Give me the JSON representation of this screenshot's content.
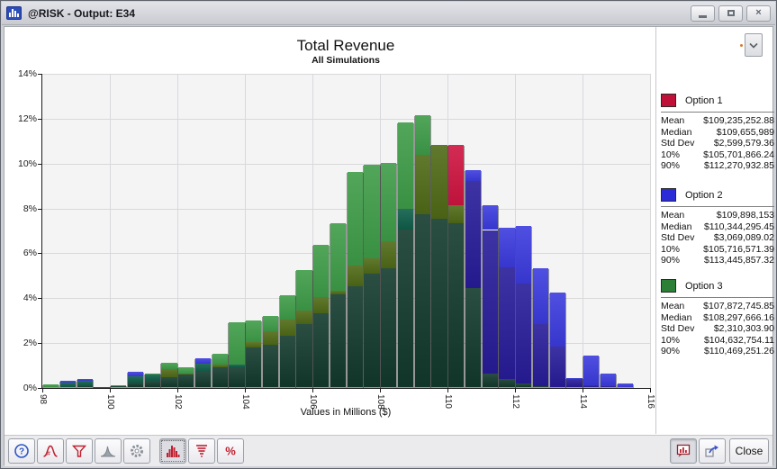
{
  "window": {
    "title": "@RISK - Output: E34",
    "controls": {
      "close_glyph": "×"
    }
  },
  "chart": {
    "title": "Total Revenue",
    "subtitle": "All Simulations",
    "xlabel": "Values in Millions ($)",
    "y_ticks": [
      "0%",
      "2%",
      "4%",
      "6%",
      "8%",
      "10%",
      "12%",
      "14%"
    ],
    "x_ticks": [
      "98",
      "100",
      "102",
      "104",
      "106",
      "108",
      "110",
      "112",
      "114",
      "116"
    ]
  },
  "chart_data": {
    "type": "bar",
    "subtype": "overlaid-histogram",
    "xlim": [
      98,
      116
    ],
    "ylim_pct": [
      0,
      14
    ],
    "bin_start": 98,
    "bin_width": 0.5,
    "grid": true,
    "series": [
      {
        "name": "Option 1",
        "key": "r",
        "color": "#CE1440",
        "values": [
          0,
          0,
          0.05,
          0,
          0.05,
          0.2,
          0.3,
          0.8,
          0.6,
          0.7,
          1.0,
          0.9,
          2.0,
          2.5,
          3.0,
          3.4,
          4.0,
          4.3,
          5.4,
          5.75,
          6.5,
          7.0,
          10.35,
          10.8,
          10.8,
          9.2,
          7.0,
          5.35,
          4.6,
          2.8,
          1.8,
          0.35,
          0.1,
          0.05,
          0,
          0
        ]
      },
      {
        "name": "Option 2",
        "key": "b",
        "color": "#3B3BDE",
        "values": [
          0,
          0.3,
          0.36,
          0.05,
          0.08,
          0.7,
          0.55,
          0.45,
          0.55,
          1.29,
          0.9,
          1.0,
          1.76,
          1.9,
          2.3,
          2.8,
          3.3,
          4.15,
          4.5,
          5.05,
          5.3,
          7.95,
          7.7,
          7.5,
          7.3,
          9.65,
          8.1,
          7.1,
          7.2,
          5.3,
          4.2,
          0.4,
          1.4,
          0.6,
          0.15,
          0
        ]
      },
      {
        "name": "Option 3",
        "key": "g",
        "color": "#3E9C48",
        "values": [
          0.12,
          0.2,
          0.28,
          0.05,
          0.1,
          0.5,
          0.6,
          1.1,
          0.88,
          1.05,
          1.5,
          2.87,
          2.96,
          3.16,
          4.1,
          5.2,
          6.35,
          7.3,
          9.6,
          9.9,
          10.0,
          11.8,
          12.1,
          10.8,
          8.1,
          4.4,
          0.6,
          0.35,
          0.15,
          0.05,
          0,
          0,
          0,
          0,
          0,
          0
        ]
      }
    ],
    "overlap_colors": {
      "g": "#3E9C48",
      "r": "#CE1440",
      "b": "#3B3BDE",
      "gr": "#4F6A16",
      "gb": "#0E5E49",
      "rb": "#271C99",
      "grb": "#123A2C"
    }
  },
  "legend": {
    "groups": [
      {
        "name": "Option 1",
        "color": "#C01038",
        "stats": [
          {
            "label": "Mean",
            "value": "$109,235,252.88"
          },
          {
            "label": "Median",
            "value": "$109,655,989"
          },
          {
            "label": "Std Dev",
            "value": "$2,599,579.36"
          },
          {
            "label": "10%",
            "value": "$105,701,866.24"
          },
          {
            "label": "90%",
            "value": "$112,270,932.85"
          }
        ]
      },
      {
        "name": "Option 2",
        "color": "#2B2BD8",
        "stats": [
          {
            "label": "Mean",
            "value": "$109,898,153"
          },
          {
            "label": "Median",
            "value": "$110,344,295.45"
          },
          {
            "label": "Std Dev",
            "value": "$3,069,089.02"
          },
          {
            "label": "10%",
            "value": "$105,716,571.39"
          },
          {
            "label": "90%",
            "value": "$113,445,857.32"
          }
        ]
      },
      {
        "name": "Option 3",
        "color": "#2B7F37",
        "stats": [
          {
            "label": "Mean",
            "value": "$107,872,745.85"
          },
          {
            "label": "Median",
            "value": "$108,297,666.16"
          },
          {
            "label": "Std Dev",
            "value": "$2,310,303.90"
          },
          {
            "label": "10%",
            "value": "$104,632,754.11"
          },
          {
            "label": "90%",
            "value": "$110,469,251.26"
          }
        ]
      }
    ]
  },
  "toolbar": {
    "left_buttons": [
      "help",
      "fit-distribution",
      "filter",
      "overlay",
      "settings"
    ],
    "view_buttons": [
      "histogram",
      "tornado",
      "percent"
    ],
    "right_buttons": [
      "callout-report",
      "export"
    ],
    "close_label": "Close"
  }
}
